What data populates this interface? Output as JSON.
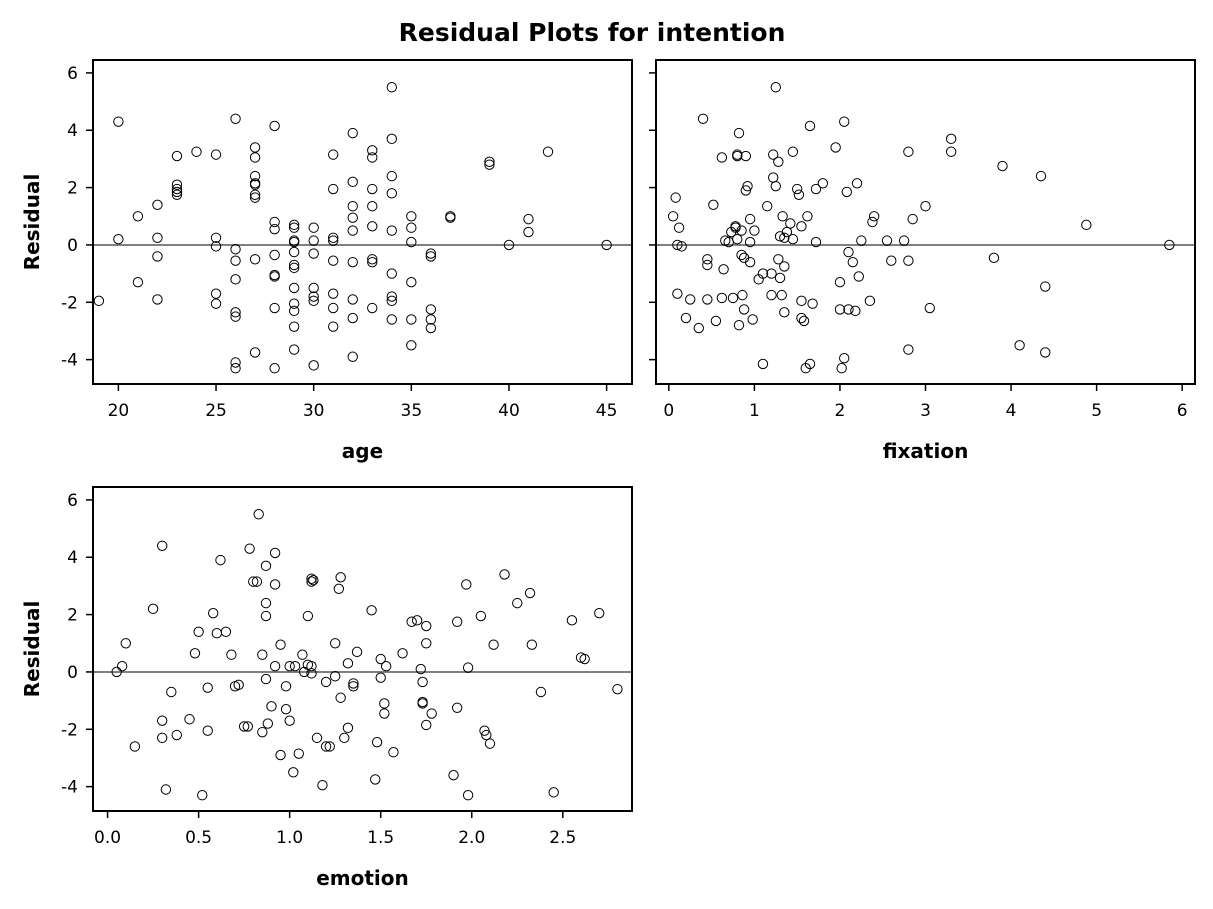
{
  "figure": {
    "title": "Residual Plots for intention"
  },
  "chart_data": [
    {
      "type": "scatter",
      "xlabel": "age",
      "ylabel": "Residual",
      "xlim": [
        18.7,
        46.3
      ],
      "ylim": [
        -4.85,
        6.45
      ],
      "xticks": [
        20,
        25,
        30,
        35,
        40,
        45
      ],
      "yticks": [
        -4,
        -2,
        0,
        2,
        4,
        6
      ],
      "reference_line_y": 0,
      "points": [
        [
          19,
          -1.95
        ],
        [
          20,
          4.3
        ],
        [
          20,
          0.2
        ],
        [
          21,
          1.0
        ],
        [
          21,
          -1.3
        ],
        [
          22,
          1.4
        ],
        [
          22,
          0.25
        ],
        [
          22,
          -0.4
        ],
        [
          22,
          -1.9
        ],
        [
          23,
          3.1
        ],
        [
          23,
          2.1
        ],
        [
          23,
          1.95
        ],
        [
          23,
          1.85
        ],
        [
          23,
          1.75
        ],
        [
          24,
          3.25
        ],
        [
          25,
          3.15
        ],
        [
          25,
          0.25
        ],
        [
          25,
          -0.05
        ],
        [
          25,
          -1.7
        ],
        [
          25,
          -2.05
        ],
        [
          26,
          4.4
        ],
        [
          26,
          -0.15
        ],
        [
          26,
          -0.55
        ],
        [
          26,
          -1.2
        ],
        [
          26,
          -2.35
        ],
        [
          26,
          -2.5
        ],
        [
          26,
          -4.1
        ],
        [
          26,
          -4.3
        ],
        [
          27,
          3.4
        ],
        [
          27,
          3.05
        ],
        [
          27,
          2.4
        ],
        [
          27,
          2.15
        ],
        [
          27,
          2.1
        ],
        [
          27,
          1.75
        ],
        [
          27,
          1.65
        ],
        [
          27,
          -0.5
        ],
        [
          27,
          -3.75
        ],
        [
          28,
          4.15
        ],
        [
          28,
          0.8
        ],
        [
          28,
          0.55
        ],
        [
          28,
          -0.35
        ],
        [
          28,
          -1.05
        ],
        [
          28,
          -1.1
        ],
        [
          28,
          -2.2
        ],
        [
          28,
          -4.3
        ],
        [
          29,
          0.7
        ],
        [
          29,
          0.6
        ],
        [
          29,
          0.15
        ],
        [
          29,
          0.1
        ],
        [
          29,
          -0.25
        ],
        [
          29,
          -0.7
        ],
        [
          29,
          -0.8
        ],
        [
          29,
          -1.5
        ],
        [
          29,
          -2.05
        ],
        [
          29,
          -2.3
        ],
        [
          29,
          -2.85
        ],
        [
          29,
          -3.65
        ],
        [
          30,
          0.6
        ],
        [
          30,
          0.15
        ],
        [
          30,
          -0.3
        ],
        [
          30,
          -1.5
        ],
        [
          30,
          -1.8
        ],
        [
          30,
          -1.95
        ],
        [
          30,
          -4.2
        ],
        [
          31,
          3.15
        ],
        [
          31,
          1.95
        ],
        [
          31,
          0.25
        ],
        [
          31,
          0.15
        ],
        [
          31,
          -0.55
        ],
        [
          31,
          -1.7
        ],
        [
          31,
          -2.2
        ],
        [
          31,
          -2.85
        ],
        [
          32,
          3.9
        ],
        [
          32,
          2.2
        ],
        [
          32,
          1.35
        ],
        [
          32,
          0.95
        ],
        [
          32,
          0.5
        ],
        [
          32,
          -0.6
        ],
        [
          32,
          -1.9
        ],
        [
          32,
          -2.55
        ],
        [
          32,
          -3.9
        ],
        [
          33,
          3.3
        ],
        [
          33,
          3.05
        ],
        [
          33,
          1.95
        ],
        [
          33,
          1.35
        ],
        [
          33,
          0.65
        ],
        [
          33,
          -0.5
        ],
        [
          33,
          -0.6
        ],
        [
          33,
          -2.2
        ],
        [
          34,
          5.5
        ],
        [
          34,
          3.7
        ],
        [
          34,
          2.4
        ],
        [
          34,
          1.8
        ],
        [
          34,
          0.5
        ],
        [
          34,
          -1.0
        ],
        [
          34,
          -1.8
        ],
        [
          34,
          -1.95
        ],
        [
          34,
          -2.6
        ],
        [
          35,
          1.0
        ],
        [
          35,
          0.6
        ],
        [
          35,
          0.1
        ],
        [
          35,
          -1.3
        ],
        [
          35,
          -2.6
        ],
        [
          35,
          -3.5
        ],
        [
          36,
          -0.3
        ],
        [
          36,
          -0.4
        ],
        [
          36,
          -2.25
        ],
        [
          36,
          -2.6
        ],
        [
          36,
          -2.9
        ],
        [
          37,
          1.0
        ],
        [
          37,
          0.95
        ],
        [
          39,
          2.9
        ],
        [
          39,
          2.8
        ],
        [
          40,
          0.0
        ],
        [
          41,
          0.9
        ],
        [
          41,
          0.45
        ],
        [
          42,
          3.25
        ],
        [
          45,
          0.0
        ]
      ]
    },
    {
      "type": "scatter",
      "xlabel": "fixation",
      "ylabel": "",
      "xlim": [
        -0.15,
        6.15
      ],
      "ylim": [
        -4.85,
        6.45
      ],
      "xticks": [
        0,
        1,
        2,
        3,
        4,
        5,
        6
      ],
      "yticks": [
        -4,
        -2,
        0,
        2,
        4,
        6
      ],
      "reference_line_y": 0,
      "points": [
        [
          0.05,
          1.0
        ],
        [
          0.08,
          1.65
        ],
        [
          0.1,
          0.0
        ],
        [
          0.1,
          -1.7
        ],
        [
          0.12,
          0.6
        ],
        [
          0.15,
          -0.05
        ],
        [
          0.2,
          -2.55
        ],
        [
          0.25,
          -1.9
        ],
        [
          0.35,
          -2.9
        ],
        [
          0.4,
          4.4
        ],
        [
          0.45,
          -0.5
        ],
        [
          0.45,
          -0.7
        ],
        [
          0.45,
          -1.9
        ],
        [
          0.52,
          1.4
        ],
        [
          0.55,
          -2.65
        ],
        [
          0.62,
          3.05
        ],
        [
          0.62,
          -1.85
        ],
        [
          0.64,
          -0.85
        ],
        [
          0.66,
          0.15
        ],
        [
          0.7,
          0.1
        ],
        [
          0.73,
          0.45
        ],
        [
          0.75,
          -1.85
        ],
        [
          0.78,
          0.65
        ],
        [
          0.78,
          0.6
        ],
        [
          0.8,
          3.15
        ],
        [
          0.8,
          3.1
        ],
        [
          0.8,
          0.2
        ],
        [
          0.82,
          3.9
        ],
        [
          0.82,
          -2.8
        ],
        [
          0.85,
          0.5
        ],
        [
          0.85,
          -0.35
        ],
        [
          0.86,
          -1.75
        ],
        [
          0.88,
          -2.25
        ],
        [
          0.88,
          -0.45
        ],
        [
          0.9,
          3.1
        ],
        [
          0.9,
          1.9
        ],
        [
          0.92,
          2.05
        ],
        [
          0.95,
          0.9
        ],
        [
          0.95,
          0.1
        ],
        [
          0.95,
          -0.6
        ],
        [
          0.98,
          -2.6
        ],
        [
          1.0,
          0.5
        ],
        [
          1.05,
          -1.2
        ],
        [
          1.1,
          -4.15
        ],
        [
          1.1,
          -1.0
        ],
        [
          1.15,
          1.35
        ],
        [
          1.2,
          -1.75
        ],
        [
          1.2,
          -1.0
        ],
        [
          1.22,
          3.15
        ],
        [
          1.22,
          2.35
        ],
        [
          1.25,
          2.05
        ],
        [
          1.25,
          5.5
        ],
        [
          1.28,
          2.9
        ],
        [
          1.28,
          -0.5
        ],
        [
          1.3,
          0.3
        ],
        [
          1.3,
          -1.15
        ],
        [
          1.32,
          -1.75
        ],
        [
          1.33,
          1.0
        ],
        [
          1.35,
          0.25
        ],
        [
          1.35,
          -2.35
        ],
        [
          1.35,
          -0.75
        ],
        [
          1.38,
          0.45
        ],
        [
          1.42,
          0.75
        ],
        [
          1.45,
          0.2
        ],
        [
          1.45,
          3.25
        ],
        [
          1.5,
          1.95
        ],
        [
          1.52,
          1.75
        ],
        [
          1.55,
          0.65
        ],
        [
          1.55,
          -1.95
        ],
        [
          1.55,
          -2.55
        ],
        [
          1.58,
          -2.65
        ],
        [
          1.6,
          -4.3
        ],
        [
          1.62,
          1.0
        ],
        [
          1.65,
          4.15
        ],
        [
          1.65,
          -4.15
        ],
        [
          1.68,
          -2.05
        ],
        [
          1.72,
          0.1
        ],
        [
          1.72,
          1.95
        ],
        [
          1.8,
          2.15
        ],
        [
          1.95,
          3.4
        ],
        [
          2.0,
          -2.25
        ],
        [
          2.0,
          -1.3
        ],
        [
          2.02,
          -4.3
        ],
        [
          2.05,
          4.3
        ],
        [
          2.05,
          -3.95
        ],
        [
          2.08,
          1.85
        ],
        [
          2.1,
          -0.25
        ],
        [
          2.1,
          -2.25
        ],
        [
          2.15,
          -0.6
        ],
        [
          2.18,
          -2.3
        ],
        [
          2.2,
          2.15
        ],
        [
          2.22,
          -1.1
        ],
        [
          2.25,
          0.15
        ],
        [
          2.35,
          -1.95
        ],
        [
          2.38,
          0.8
        ],
        [
          2.4,
          1.0
        ],
        [
          2.55,
          0.15
        ],
        [
          2.6,
          -0.55
        ],
        [
          2.75,
          0.15
        ],
        [
          2.8,
          3.25
        ],
        [
          2.8,
          -3.65
        ],
        [
          2.8,
          -0.55
        ],
        [
          2.85,
          0.9
        ],
        [
          3.0,
          1.35
        ],
        [
          3.05,
          -2.2
        ],
        [
          3.3,
          3.7
        ],
        [
          3.3,
          3.25
        ],
        [
          3.8,
          -0.45
        ],
        [
          3.9,
          2.75
        ],
        [
          4.1,
          -3.5
        ],
        [
          4.35,
          2.4
        ],
        [
          4.4,
          -1.45
        ],
        [
          4.4,
          -3.75
        ],
        [
          4.88,
          0.7
        ],
        [
          5.85,
          0.0
        ]
      ]
    },
    {
      "type": "scatter",
      "xlabel": "emotion",
      "ylabel": "Residual",
      "xlim": [
        -0.08,
        2.88
      ],
      "ylim": [
        -4.85,
        6.45
      ],
      "xticks": [
        0.0,
        0.5,
        1.0,
        1.5,
        2.0,
        2.5
      ],
      "xticklabels": [
        "0.0",
        "0.5",
        "1.0",
        "1.5",
        "2.0",
        "2.5"
      ],
      "yticks": [
        -4,
        -2,
        0,
        2,
        4,
        6
      ],
      "reference_line_y": 0,
      "points": [
        [
          0.05,
          0.0
        ],
        [
          0.08,
          0.2
        ],
        [
          0.1,
          1.0
        ],
        [
          0.15,
          -2.6
        ],
        [
          0.25,
          2.2
        ],
        [
          0.3,
          4.4
        ],
        [
          0.3,
          -1.7
        ],
        [
          0.3,
          -2.3
        ],
        [
          0.32,
          -4.1
        ],
        [
          0.35,
          -0.7
        ],
        [
          0.38,
          -2.2
        ],
        [
          0.45,
          -1.65
        ],
        [
          0.48,
          0.65
        ],
        [
          0.5,
          1.4
        ],
        [
          0.52,
          -4.3
        ],
        [
          0.55,
          -0.55
        ],
        [
          0.55,
          -2.05
        ],
        [
          0.58,
          2.05
        ],
        [
          0.6,
          1.35
        ],
        [
          0.62,
          3.9
        ],
        [
          0.65,
          1.4
        ],
        [
          0.68,
          0.6
        ],
        [
          0.7,
          -0.5
        ],
        [
          0.72,
          -0.45
        ],
        [
          0.75,
          -1.9
        ],
        [
          0.77,
          -1.9
        ],
        [
          0.78,
          4.3
        ],
        [
          0.8,
          3.15
        ],
        [
          0.82,
          3.15
        ],
        [
          0.83,
          5.5
        ],
        [
          0.85,
          0.6
        ],
        [
          0.85,
          -2.1
        ],
        [
          0.87,
          3.7
        ],
        [
          0.87,
          2.4
        ],
        [
          0.87,
          1.95
        ],
        [
          0.87,
          -0.25
        ],
        [
          0.88,
          -1.8
        ],
        [
          0.9,
          -1.2
        ],
        [
          0.92,
          4.15
        ],
        [
          0.92,
          3.05
        ],
        [
          0.92,
          0.2
        ],
        [
          0.95,
          0.95
        ],
        [
          0.95,
          -2.9
        ],
        [
          0.98,
          -0.5
        ],
        [
          0.98,
          -1.3
        ],
        [
          1.0,
          0.2
        ],
        [
          1.0,
          -1.7
        ],
        [
          1.02,
          -3.5
        ],
        [
          1.03,
          0.2
        ],
        [
          1.05,
          -2.85
        ],
        [
          1.07,
          0.6
        ],
        [
          1.08,
          0.0
        ],
        [
          1.1,
          1.95
        ],
        [
          1.1,
          0.25
        ],
        [
          1.12,
          3.25
        ],
        [
          1.12,
          3.15
        ],
        [
          1.12,
          0.2
        ],
        [
          1.12,
          -0.05
        ],
        [
          1.13,
          3.2
        ],
        [
          1.15,
          -2.3
        ],
        [
          1.18,
          -3.95
        ],
        [
          1.2,
          -0.35
        ],
        [
          1.2,
          -2.6
        ],
        [
          1.22,
          -2.6
        ],
        [
          1.25,
          1.0
        ],
        [
          1.25,
          -0.15
        ],
        [
          1.27,
          2.9
        ],
        [
          1.28,
          3.3
        ],
        [
          1.28,
          -0.9
        ],
        [
          1.3,
          -2.3
        ],
        [
          1.32,
          0.3
        ],
        [
          1.32,
          -1.95
        ],
        [
          1.35,
          -0.4
        ],
        [
          1.35,
          -0.5
        ],
        [
          1.37,
          0.7
        ],
        [
          1.45,
          2.15
        ],
        [
          1.47,
          -3.75
        ],
        [
          1.48,
          -2.45
        ],
        [
          1.5,
          0.45
        ],
        [
          1.5,
          -0.2
        ],
        [
          1.52,
          -1.1
        ],
        [
          1.52,
          -1.45
        ],
        [
          1.53,
          0.2
        ],
        [
          1.57,
          -2.8
        ],
        [
          1.62,
          0.65
        ],
        [
          1.67,
          1.75
        ],
        [
          1.7,
          1.8
        ],
        [
          1.72,
          0.1
        ],
        [
          1.73,
          -0.35
        ],
        [
          1.73,
          -1.05
        ],
        [
          1.73,
          -1.1
        ],
        [
          1.75,
          1.6
        ],
        [
          1.75,
          -1.85
        ],
        [
          1.75,
          1.0
        ],
        [
          1.78,
          -1.45
        ],
        [
          1.9,
          -3.6
        ],
        [
          1.92,
          1.75
        ],
        [
          1.92,
          -1.25
        ],
        [
          1.97,
          3.05
        ],
        [
          1.98,
          0.15
        ],
        [
          1.98,
          -4.3
        ],
        [
          2.05,
          1.95
        ],
        [
          2.07,
          -2.05
        ],
        [
          2.08,
          -2.2
        ],
        [
          2.1,
          -2.5
        ],
        [
          2.12,
          0.95
        ],
        [
          2.18,
          3.4
        ],
        [
          2.25,
          2.4
        ],
        [
          2.32,
          2.75
        ],
        [
          2.33,
          0.95
        ],
        [
          2.38,
          -0.7
        ],
        [
          2.45,
          -4.2
        ],
        [
          2.55,
          1.8
        ],
        [
          2.6,
          0.5
        ],
        [
          2.62,
          0.45
        ],
        [
          2.7,
          2.05
        ],
        [
          2.8,
          -0.6
        ]
      ]
    }
  ]
}
